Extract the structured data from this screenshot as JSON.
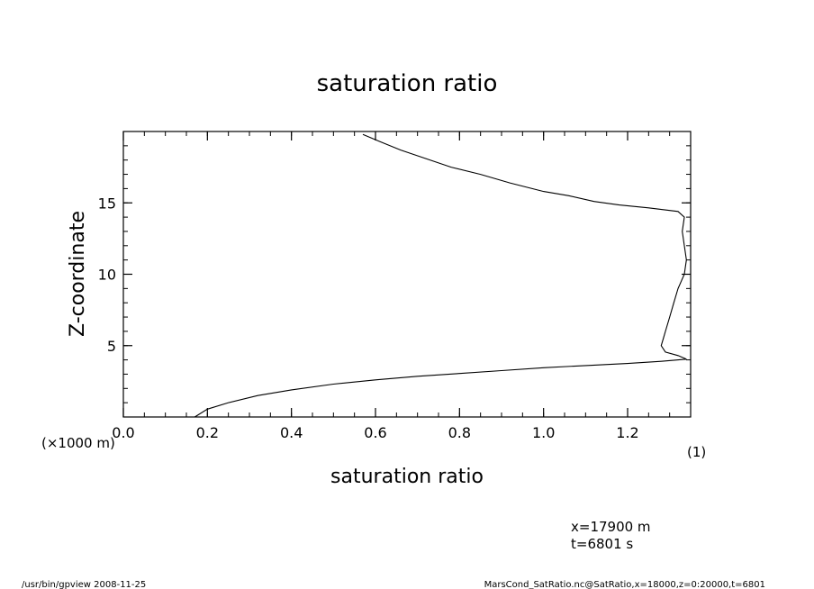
{
  "chart_data": {
    "type": "line",
    "title": "saturation ratio",
    "xlabel": "saturation ratio",
    "ylabel": "Z-coordinate",
    "x_unit_note": "(1)",
    "y_unit_note": "(×1000 m)",
    "xlim": [
      0.0,
      1.35
    ],
    "ylim": [
      0,
      20
    ],
    "x_ticks": [
      "0.0",
      "0.2",
      "0.4",
      "0.6",
      "0.8",
      "1.0",
      "1.2"
    ],
    "x_tick_values": [
      0.0,
      0.2,
      0.4,
      0.6,
      0.8,
      1.0,
      1.2
    ],
    "y_ticks": [
      "5",
      "10",
      "15"
    ],
    "y_tick_values": [
      5,
      10,
      15
    ],
    "grid": false,
    "series": [
      {
        "color": "#000000",
        "points": [
          [
            0.17,
            0.0
          ],
          [
            0.2,
            0.55
          ],
          [
            0.25,
            1.0
          ],
          [
            0.32,
            1.5
          ],
          [
            0.4,
            1.9
          ],
          [
            0.5,
            2.3
          ],
          [
            0.6,
            2.6
          ],
          [
            0.7,
            2.85
          ],
          [
            0.8,
            3.05
          ],
          [
            0.9,
            3.25
          ],
          [
            1.0,
            3.45
          ],
          [
            1.1,
            3.6
          ],
          [
            1.2,
            3.75
          ],
          [
            1.28,
            3.9
          ],
          [
            1.34,
            4.05
          ],
          [
            1.32,
            4.3
          ],
          [
            1.29,
            4.55
          ],
          [
            1.28,
            5.0
          ],
          [
            1.285,
            5.5
          ],
          [
            1.29,
            6.0
          ],
          [
            1.3,
            7.0
          ],
          [
            1.31,
            8.0
          ],
          [
            1.32,
            9.0
          ],
          [
            1.335,
            10.0
          ],
          [
            1.34,
            11.0
          ],
          [
            1.335,
            12.0
          ],
          [
            1.33,
            13.0
          ],
          [
            1.335,
            14.0
          ],
          [
            1.32,
            14.4
          ],
          [
            1.25,
            14.65
          ],
          [
            1.18,
            14.85
          ],
          [
            1.12,
            15.1
          ],
          [
            1.06,
            15.5
          ],
          [
            1.0,
            15.8
          ],
          [
            0.92,
            16.4
          ],
          [
            0.85,
            17.0
          ],
          [
            0.78,
            17.5
          ],
          [
            0.72,
            18.1
          ],
          [
            0.66,
            18.7
          ],
          [
            0.61,
            19.3
          ],
          [
            0.57,
            19.8
          ]
        ]
      }
    ]
  },
  "footer": {
    "info_x": "x=17900  m",
    "info_t": "t=6801  s",
    "left_note": "/usr/bin/gpview   2008-11-25",
    "right_note": "MarsCond_SatRatio.nc@SatRatio,x=18000,z=0:20000,t=6801"
  }
}
